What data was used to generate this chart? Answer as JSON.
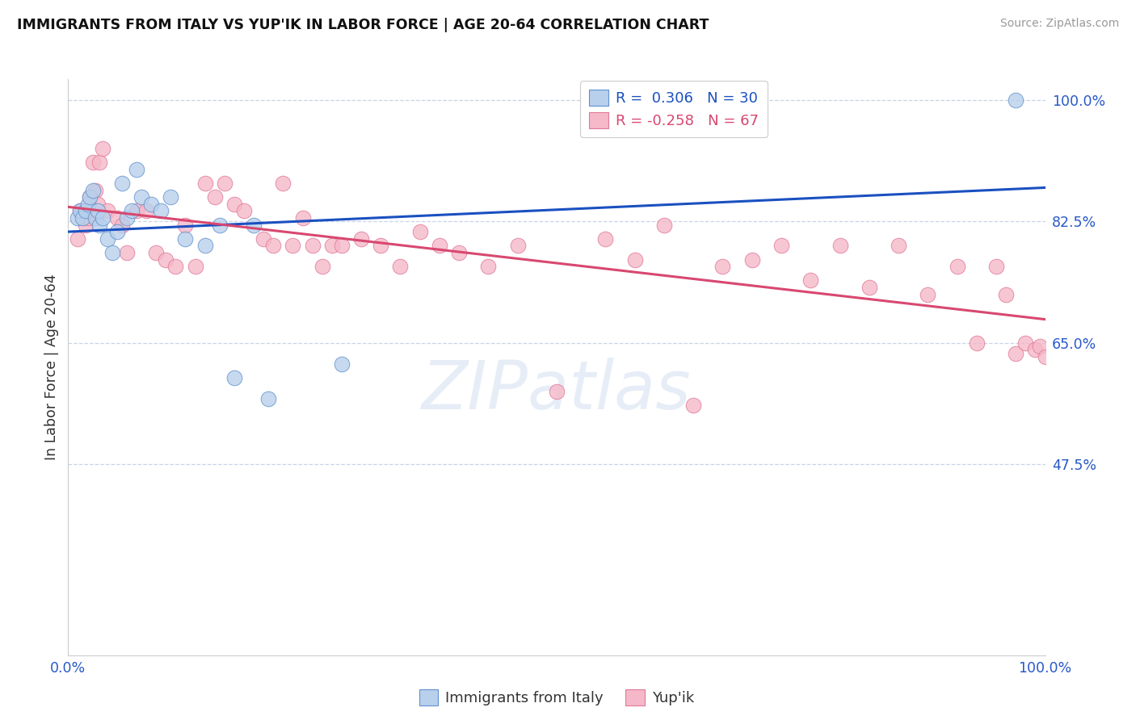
{
  "title": "IMMIGRANTS FROM ITALY VS YUP'IK IN LABOR FORCE | AGE 20-64 CORRELATION CHART",
  "source": "Source: ZipAtlas.com",
  "ylabel": "In Labor Force | Age 20-64",
  "yticks": [
    47.5,
    65.0,
    82.5,
    100.0
  ],
  "ytick_labels": [
    "47.5%",
    "65.0%",
    "82.5%",
    "100.0%"
  ],
  "xtick_labels": [
    "0.0%",
    "100.0%"
  ],
  "xmin": 0.0,
  "xmax": 100.0,
  "ymin": 20.0,
  "ymax": 103.0,
  "legend_italy_R": "0.306",
  "legend_italy_N": "30",
  "legend_yupik_R": "-0.258",
  "legend_yupik_N": "67",
  "legend_label_italy": "Immigrants from Italy",
  "legend_label_yupik": "Yup'ik",
  "color_italy_face": "#b8d0ec",
  "color_italy_edge": "#6090cc",
  "color_yupik_face": "#f5b8c8",
  "color_yupik_edge": "#e07898",
  "color_trend_italy": "#1a50c0",
  "color_trend_yupik": "#d84870",
  "color_ytick": "#2858c8",
  "color_xtick": "#2858c8",
  "watermark_zip": "ZIP",
  "watermark_atlas": "atlas",
  "italy_x": [
    1.0,
    1.2,
    1.5,
    1.8,
    2.0,
    2.2,
    2.5,
    2.8,
    3.0,
    3.2,
    3.5,
    4.0,
    4.5,
    5.0,
    5.5,
    6.0,
    6.5,
    7.0,
    7.5,
    8.5,
    9.5,
    10.5,
    12.0,
    14.0,
    15.5,
    17.0,
    19.0,
    20.5,
    28.0,
    97.0
  ],
  "italy_y": [
    83.0,
    84.0,
    83.0,
    84.0,
    85.0,
    86.0,
    87.0,
    83.0,
    84.0,
    82.0,
    83.0,
    80.0,
    78.0,
    81.0,
    88.0,
    83.0,
    84.0,
    90.0,
    86.0,
    85.0,
    84.0,
    86.0,
    80.0,
    79.0,
    82.0,
    60.0,
    82.0,
    57.0,
    62.0,
    100.0
  ],
  "yupik_x": [
    1.0,
    1.2,
    1.4,
    1.6,
    1.8,
    2.0,
    2.2,
    2.5,
    2.8,
    3.0,
    3.2,
    3.5,
    4.0,
    5.0,
    5.5,
    6.0,
    7.0,
    8.0,
    9.0,
    10.0,
    11.0,
    12.0,
    13.0,
    14.0,
    15.0,
    16.0,
    17.0,
    18.0,
    20.0,
    21.0,
    22.0,
    23.0,
    24.0,
    25.0,
    26.0,
    27.0,
    28.0,
    30.0,
    32.0,
    34.0,
    36.0,
    38.0,
    40.0,
    43.0,
    46.0,
    50.0,
    55.0,
    58.0,
    61.0,
    64.0,
    67.0,
    70.0,
    73.0,
    76.0,
    79.0,
    82.0,
    85.0,
    88.0,
    91.0,
    93.0,
    95.0,
    96.0,
    97.0,
    98.0,
    99.0,
    99.5,
    100.0
  ],
  "yupik_y": [
    80.0,
    84.0,
    84.0,
    83.0,
    82.0,
    83.0,
    86.0,
    91.0,
    87.0,
    85.0,
    91.0,
    93.0,
    84.0,
    83.0,
    82.0,
    78.0,
    84.0,
    84.0,
    78.0,
    77.0,
    76.0,
    82.0,
    76.0,
    88.0,
    86.0,
    88.0,
    85.0,
    84.0,
    80.0,
    79.0,
    88.0,
    79.0,
    83.0,
    79.0,
    76.0,
    79.0,
    79.0,
    80.0,
    79.0,
    76.0,
    81.0,
    79.0,
    78.0,
    76.0,
    79.0,
    58.0,
    80.0,
    77.0,
    82.0,
    56.0,
    76.0,
    77.0,
    79.0,
    74.0,
    79.0,
    73.0,
    79.0,
    72.0,
    76.0,
    65.0,
    76.0,
    72.0,
    63.5,
    65.0,
    64.0,
    64.5,
    63.0
  ]
}
